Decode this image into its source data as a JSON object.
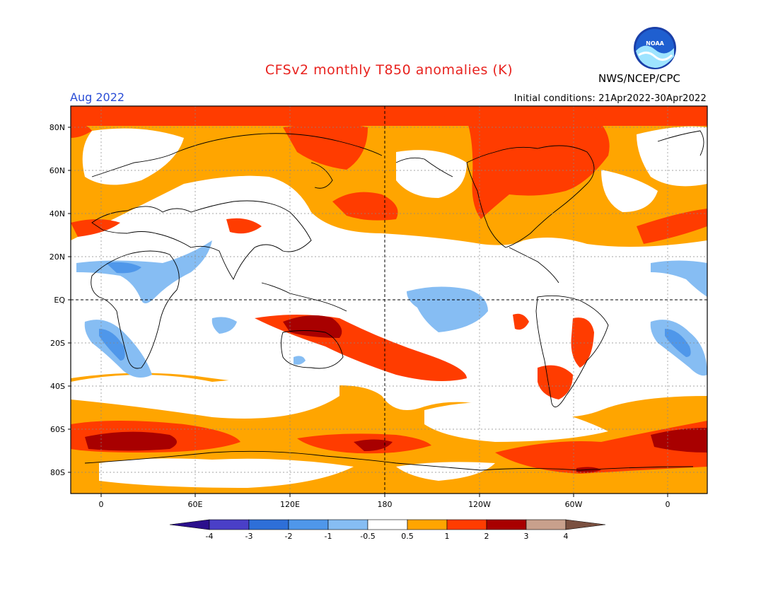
{
  "title": "CFSv2 monthly T850 anomalies (K)",
  "agency": "NWS/NCEP/CPC",
  "logo_text": "NOAA",
  "valid_month": "Aug 2022",
  "initial_conditions": "Initial conditions: 21Apr2022-30Apr2022",
  "map": {
    "lon_ticks": [
      "0",
      "60E",
      "120E",
      "180",
      "120W",
      "60W",
      "0"
    ],
    "lat_ticks": [
      "80N",
      "60N",
      "40N",
      "20N",
      "EQ",
      "20S",
      "40S",
      "60S",
      "80S"
    ]
  },
  "colorbar": {
    "labels": [
      "-4",
      "-3",
      "-2",
      "-1",
      "-0.5",
      "0.5",
      "1",
      "2",
      "3",
      "4"
    ],
    "colors": [
      "#2b0f8c",
      "#4a3fc7",
      "#2e6fd8",
      "#4f97ea",
      "#86bdf3",
      "#ffffff",
      "#ffa500",
      "#ff3c00",
      "#a80000",
      "#c8a08c",
      "#7a5040"
    ]
  },
  "colors": {
    "title": "#e8231f",
    "month": "#2a4dd6",
    "warm1": "#ffa500",
    "warm2": "#ff3c00",
    "warm3": "#a80000",
    "cool1": "#86bdf3",
    "cool2": "#4f97ea",
    "cool3": "#2e6fd8"
  }
}
